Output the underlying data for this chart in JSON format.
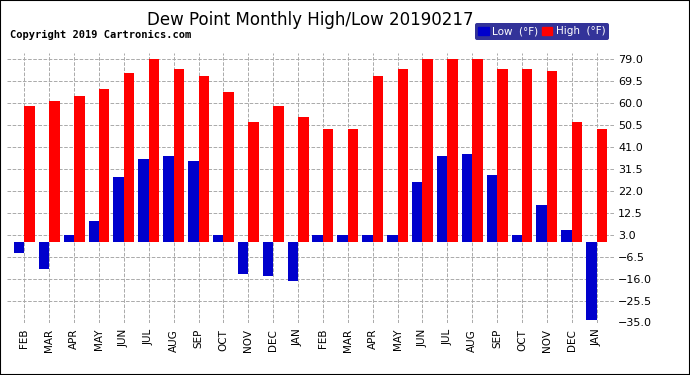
{
  "title": "Dew Point Monthly High/Low 20190217",
  "copyright": "Copyright 2019 Cartronics.com",
  "months": [
    "FEB",
    "MAR",
    "APR",
    "MAY",
    "JUN",
    "JUL",
    "AUG",
    "SEP",
    "OCT",
    "NOV",
    "DEC",
    "JAN",
    "FEB",
    "MAR",
    "APR",
    "MAY",
    "JUN",
    "JUL",
    "AUG",
    "SEP",
    "OCT",
    "NOV",
    "DEC",
    "JAN"
  ],
  "high": [
    59,
    61,
    63,
    66,
    73,
    79,
    75,
    72,
    65,
    52,
    59,
    54,
    49,
    49,
    72,
    75,
    79,
    79,
    79,
    75,
    75,
    74,
    52,
    49
  ],
  "low": [
    -5,
    -12,
    3,
    9,
    28,
    36,
    37,
    35,
    3,
    -14,
    -15,
    -17,
    3,
    3,
    3,
    3,
    26,
    37,
    38,
    29,
    3,
    16,
    5,
    -34
  ],
  "high_color": "#ff0000",
  "low_color": "#0000cc",
  "background_color": "#ffffff",
  "grid_color": "#aaaaaa",
  "ylim": [
    -35,
    82
  ],
  "yticks": [
    -35.0,
    -25.5,
    -16.0,
    -6.5,
    3.0,
    12.5,
    22.0,
    31.5,
    41.0,
    50.5,
    60.0,
    69.5,
    79.0
  ],
  "title_fontsize": 12,
  "copyright_fontsize": 7.5,
  "legend_low_label": "Low  (°F)",
  "legend_high_label": "High  (°F)"
}
